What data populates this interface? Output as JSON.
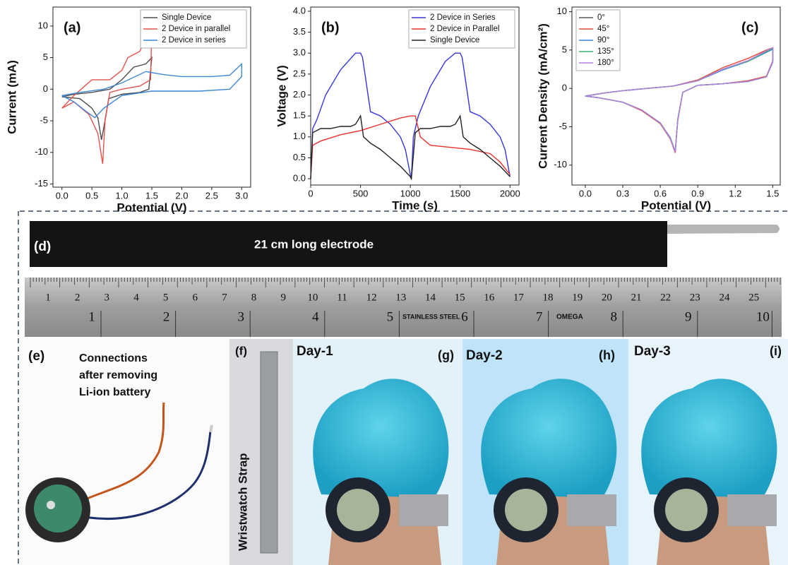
{
  "chart_data": [
    {
      "type": "line",
      "annotation": "(a)",
      "xlabel": "Potential (V)",
      "ylabel": "Current (mA)",
      "xlim": [
        -0.15,
        3.15
      ],
      "ylim": [
        -15.5,
        13
      ],
      "xticks": [
        {
          "value": 0,
          "label": "0.0"
        },
        0.5,
        {
          "value": 1,
          "label": "1.0"
        },
        1.5,
        {
          "value": 2,
          "label": "2.0"
        },
        2.5,
        {
          "value": 3,
          "label": "3.0"
        }
      ],
      "yticks": [
        -15,
        -10,
        -5,
        0,
        5,
        10
      ],
      "legend": "upper right",
      "series": [
        {
          "name": "Single Device",
          "color": "#4d4d4d",
          "x": [
            0,
            0.2,
            0.5,
            0.8,
            1.0,
            1.2,
            1.4,
            1.5,
            1.45,
            1.3,
            1.0,
            0.78,
            0.7,
            0.66,
            0.6,
            0.5,
            0.3,
            0
          ],
          "values": [
            -1.2,
            -0.8,
            -0.5,
            0,
            1.5,
            3.5,
            4,
            5,
            0,
            -0.5,
            -0.8,
            -1.5,
            -6,
            -8,
            -4.5,
            -3,
            -1.5,
            -1.2
          ]
        },
        {
          "name": "2 Device in parallel",
          "color": "#e8524a",
          "x": [
            0,
            0.2,
            0.5,
            0.8,
            1.0,
            1.1,
            1.3,
            1.5,
            1.48,
            1.3,
            1.0,
            0.8,
            0.72,
            0.68,
            0.6,
            0.45,
            0.2,
            0
          ],
          "values": [
            -3,
            -1,
            1.5,
            1.5,
            3,
            5,
            6,
            10,
            1.5,
            0.5,
            0,
            -0.5,
            -5,
            -11.8,
            -7,
            -4,
            -2,
            -3
          ]
        },
        {
          "name": "2 Device in series",
          "color": "#3a86d8",
          "x": [
            0,
            0.3,
            0.7,
            1.0,
            1.4,
            1.7,
            2.0,
            2.5,
            2.8,
            3.0,
            3.0,
            2.8,
            2.3,
            1.5,
            1.0,
            0.7,
            0.55,
            0.4,
            0.2,
            0
          ],
          "values": [
            -1,
            -0.5,
            0,
            1,
            2.8,
            2.3,
            2,
            2,
            2.2,
            4,
            2,
            0,
            -0.3,
            -0.3,
            -1,
            -3,
            -4.5,
            -3.5,
            -2,
            -1
          ]
        }
      ]
    },
    {
      "type": "line",
      "annotation": "(b)",
      "xlabel": "Time (s)",
      "ylabel": "Voltage (V)",
      "xlim": [
        0,
        2090
      ],
      "ylim": [
        -0.15,
        4.1
      ],
      "xticks": [
        0,
        500,
        1000,
        1500,
        2000
      ],
      "yticks": [
        {
          "value": 0,
          "label": "0.0"
        },
        0.5,
        {
          "value": 1,
          "label": "1.0"
        },
        1.5,
        {
          "value": 2,
          "label": "2.0"
        },
        2.5,
        {
          "value": 3,
          "label": "3.0"
        },
        3.5,
        {
          "value": 4,
          "label": "4.0"
        }
      ],
      "legend": "upper right",
      "series": [
        {
          "name": "2 Device in Series",
          "color": "#3535e0",
          "x": [
            0,
            20,
            60,
            150,
            300,
            450,
            500,
            520,
            600,
            700,
            800,
            900,
            950,
            1000,
            1010,
            1030,
            1080,
            1200,
            1350,
            1450,
            1500,
            1520,
            1600,
            1700,
            1800,
            1900,
            1950,
            2000
          ],
          "values": [
            0,
            1.2,
            1.4,
            2.0,
            2.6,
            3.0,
            3.0,
            2.9,
            1.6,
            1.5,
            1.3,
            1.0,
            0.7,
            0.1,
            0,
            1.0,
            1.5,
            2.2,
            2.8,
            3.0,
            3.0,
            2.9,
            1.6,
            1.5,
            1.3,
            1.0,
            0.7,
            0.05
          ]
        },
        {
          "name": "2 Device in Parallel",
          "color": "#e8322a",
          "x": [
            0,
            20,
            100,
            300,
            500,
            700,
            900,
            1000,
            1050,
            1070,
            1100,
            1200,
            1400,
            1600,
            1800,
            1900,
            2000
          ],
          "values": [
            0,
            0.8,
            0.9,
            1.05,
            1.15,
            1.3,
            1.45,
            1.5,
            1.5,
            1.3,
            1.0,
            0.8,
            0.75,
            0.7,
            0.6,
            0.4,
            0.1
          ]
        },
        {
          "name": "Single Device",
          "color": "#222222",
          "x": [
            0,
            20,
            100,
            200,
            300,
            400,
            450,
            500,
            530,
            600,
            700,
            800,
            900,
            1000,
            1010,
            1050,
            1100,
            1200,
            1300,
            1400,
            1450,
            1500,
            1530,
            1600,
            1700,
            1800,
            1900,
            2000
          ],
          "values": [
            0,
            1.1,
            1.2,
            1.2,
            1.25,
            1.25,
            1.3,
            1.5,
            1.0,
            0.85,
            0.7,
            0.5,
            0.3,
            0.05,
            0,
            1.1,
            1.2,
            1.2,
            1.25,
            1.25,
            1.3,
            1.5,
            1.0,
            0.85,
            0.7,
            0.5,
            0.3,
            0.05
          ]
        }
      ]
    },
    {
      "type": "line",
      "annotation": "(c)",
      "xlabel": "Potential (V)",
      "ylabel": "Current Density (mA/cm²)",
      "xlim": [
        -0.107,
        1.56
      ],
      "ylim": [
        -12.6,
        10.6
      ],
      "xticks": [
        {
          "value": 0,
          "label": "0.0"
        },
        0.3,
        0.6,
        0.9,
        1.2,
        1.5
      ],
      "yticks": [
        -10,
        -5,
        0,
        5,
        10
      ],
      "legend": "upper left",
      "series": [
        {
          "name": "0°",
          "color": "#555555",
          "x": [
            0,
            0.15,
            0.3,
            0.5,
            0.7,
            0.9,
            1.1,
            1.3,
            1.45,
            1.5,
            1.5,
            1.45,
            1.3,
            1.1,
            0.9,
            0.78,
            0.74,
            0.72,
            0.68,
            0.6,
            0.45,
            0.3,
            0.1,
            0
          ],
          "values": [
            -1,
            -0.6,
            -0.3,
            0,
            0.3,
            1,
            2.5,
            3.6,
            4.8,
            5.2,
            3.5,
            1.5,
            0.9,
            0.6,
            0.4,
            -0.5,
            -4,
            -8.3,
            -6.5,
            -4.5,
            -2.8,
            -1.8,
            -1.2,
            -1
          ]
        },
        {
          "name": "45°",
          "color": "#e74c3c",
          "x": [
            0,
            0.15,
            0.3,
            0.5,
            0.7,
            0.9,
            1.1,
            1.3,
            1.45,
            1.5,
            1.5,
            1.45,
            1.3,
            1.1,
            0.9,
            0.78,
            0.74,
            0.72,
            0.68,
            0.6,
            0.45,
            0.3,
            0.1,
            0
          ],
          "values": [
            -1,
            -0.6,
            -0.3,
            0,
            0.3,
            1.1,
            2.7,
            3.9,
            5,
            5.3,
            3.6,
            1.6,
            1.0,
            0.6,
            0.4,
            -0.5,
            -4.2,
            -8.4,
            -6.6,
            -4.6,
            -2.9,
            -1.8,
            -1.2,
            -1
          ]
        },
        {
          "name": "90°",
          "color": "#3a86d8",
          "x": [
            0,
            0.15,
            0.3,
            0.5,
            0.7,
            0.9,
            1.1,
            1.3,
            1.45,
            1.5,
            1.5,
            1.45,
            1.3,
            1.1,
            0.9,
            0.78,
            0.74,
            0.72,
            0.68,
            0.6,
            0.45,
            0.3,
            0.1,
            0
          ],
          "values": [
            -1,
            -0.6,
            -0.3,
            0,
            0.3,
            1,
            2.4,
            3.5,
            4.7,
            5.1,
            3.4,
            1.5,
            0.9,
            0.6,
            0.4,
            -0.5,
            -4,
            -8.2,
            -6.4,
            -4.5,
            -2.8,
            -1.8,
            -1.2,
            -1
          ]
        },
        {
          "name": "135°",
          "color": "#3cb371",
          "x": [
            0,
            0.15,
            0.3,
            0.5,
            0.7,
            0.9,
            1.1,
            1.3,
            1.45,
            1.5,
            1.5,
            1.45,
            1.3,
            1.1,
            0.9,
            0.78,
            0.74,
            0.72,
            0.68,
            0.6,
            0.45,
            0.3,
            0.1,
            0
          ],
          "values": [
            -1,
            -0.6,
            -0.3,
            0,
            0.3,
            1,
            2.5,
            3.5,
            4.8,
            5.2,
            3.5,
            1.5,
            0.9,
            0.6,
            0.4,
            -0.5,
            -4,
            -8.2,
            -6.5,
            -4.5,
            -2.8,
            -1.8,
            -1.2,
            -1
          ]
        },
        {
          "name": "180°",
          "color": "#b07ee0",
          "x": [
            0,
            0.15,
            0.3,
            0.5,
            0.7,
            0.9,
            1.1,
            1.3,
            1.45,
            1.5,
            1.5,
            1.45,
            1.3,
            1.1,
            0.9,
            0.78,
            0.74,
            0.72,
            0.68,
            0.6,
            0.45,
            0.3,
            0.1,
            0
          ],
          "values": [
            -1,
            -0.6,
            -0.3,
            0,
            0.3,
            1,
            2.5,
            3.6,
            4.9,
            5.3,
            3.5,
            1.5,
            0.9,
            0.6,
            0.4,
            -0.5,
            -4.1,
            -8.3,
            -6.5,
            -4.5,
            -2.8,
            -1.8,
            -1.2,
            -1
          ]
        }
      ]
    }
  ],
  "photos": {
    "d": {
      "label": "(d)",
      "caption": "21 cm long electrode",
      "ruler_cm": [
        1,
        2,
        3,
        4,
        5,
        6,
        7,
        8,
        9,
        10,
        11,
        12,
        13,
        14,
        15,
        16,
        17,
        18,
        19,
        20,
        21,
        22,
        23,
        24,
        25
      ],
      "ruler_inch": [
        1,
        2,
        3,
        4,
        5,
        6,
        7,
        8,
        9,
        10
      ],
      "ruler_marks": [
        "STAINLESS STEEL",
        "OMEGA"
      ]
    },
    "e": {
      "label": "(e)",
      "caption": [
        "Connections",
        "after removing",
        "Li-ion battery"
      ]
    },
    "f": {
      "label": "(f)",
      "caption": "Wristwatch Strap"
    },
    "g": {
      "label": "(g)",
      "caption": "Day-1"
    },
    "h": {
      "label": "(h)",
      "caption": "Day-2"
    },
    "i": {
      "label": "(i)",
      "caption": "Day-3"
    }
  }
}
